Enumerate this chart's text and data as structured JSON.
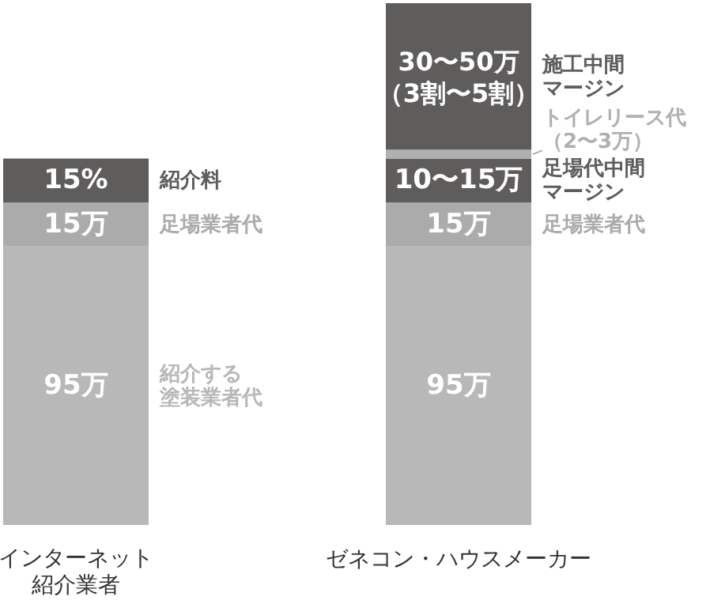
{
  "chart_data": {
    "type": "bar",
    "stacked": true,
    "categories": [
      "インターネット紹介業者",
      "ゼネコン・ハウスメーカー"
    ],
    "series": [
      {
        "name": "紹介する塗装業者代",
        "color": "#b8b8b8",
        "values": [
          95,
          null
        ],
        "value_labels": [
          "95万",
          null
        ]
      },
      {
        "color": "#b8b8b8",
        "values": [
          null,
          95
        ],
        "value_labels": [
          null,
          "95万"
        ]
      },
      {
        "name": "足場業者代",
        "color": "#ababab",
        "values": [
          15,
          15
        ],
        "value_labels": [
          "15万",
          "15万"
        ]
      },
      {
        "name": "紹介料",
        "color": "#5f5c5c",
        "values": [
          15,
          null
        ],
        "value_labels": [
          "15%",
          null
        ]
      },
      {
        "name": "足場代中間マージン",
        "color": "#5f5c5c",
        "values": [
          null,
          15
        ],
        "value_labels": [
          null,
          "10〜15万"
        ]
      },
      {
        "name": "トイレリース代（2〜3万）",
        "color": "#b0b0b0",
        "values": [
          null,
          3
        ],
        "value_labels": [
          null,
          null
        ]
      },
      {
        "name": "施工中間マージン",
        "color": "#5f5c5c",
        "values": [
          null,
          50
        ],
        "value_labels": [
          null,
          "30〜50万（3割〜5割）"
        ]
      }
    ]
  }
}
